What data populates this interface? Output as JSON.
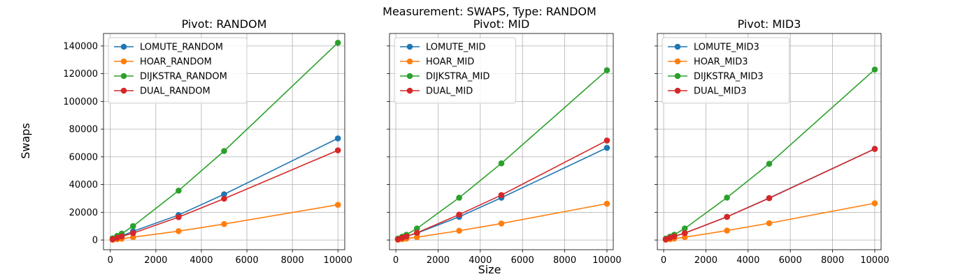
{
  "figure": {
    "suptitle": "Measurement: SWAPS, Type: RANDOM",
    "xlabel": "Size",
    "ylabel": "Swaps"
  },
  "chart_data": [
    {
      "type": "line",
      "title": "Pivot: RANDOM",
      "xlim": [
        -300,
        10300
      ],
      "ylim": [
        -7000,
        149000
      ],
      "xticks": [
        0,
        2000,
        4000,
        6000,
        8000,
        10000
      ],
      "yticks": [
        0,
        20000,
        40000,
        60000,
        80000,
        100000,
        120000,
        140000
      ],
      "grid": true,
      "legend": "top-left",
      "x": [
        100,
        300,
        500,
        1000,
        3000,
        5000,
        10000
      ],
      "series": [
        {
          "name": "LOMUTE_RANDOM",
          "color": "#1f77b4",
          "values": [
            700,
            1900,
            3000,
            6300,
            18000,
            33000,
            73300
          ]
        },
        {
          "name": "HOAR_RANDOM",
          "color": "#ff7f0e",
          "values": [
            200,
            600,
            900,
            2000,
            6400,
            11500,
            25400
          ]
        },
        {
          "name": "DIJKSTRA_RANDOM",
          "color": "#2ca02c",
          "values": [
            1200,
            3000,
            4600,
            10000,
            35600,
            64200,
            142300
          ]
        },
        {
          "name": "DUAL_RANDOM",
          "color": "#d62728",
          "values": [
            500,
            1600,
            2600,
            5000,
            16500,
            29800,
            64700
          ]
        }
      ]
    },
    {
      "type": "line",
      "title": "Pivot: MID",
      "xlim": [
        -300,
        10300
      ],
      "ylim": [
        -7000,
        149000
      ],
      "xticks": [
        0,
        2000,
        4000,
        6000,
        8000,
        10000
      ],
      "yticks": [
        0,
        20000,
        40000,
        60000,
        80000,
        100000,
        120000,
        140000
      ],
      "grid": true,
      "legend": "top-left",
      "x": [
        100,
        300,
        500,
        1000,
        3000,
        5000,
        10000
      ],
      "series": [
        {
          "name": "LOMUTE_MID",
          "color": "#1f77b4",
          "values": [
            500,
            1600,
            2700,
            5000,
            16700,
            30500,
            66500
          ]
        },
        {
          "name": "HOAR_MID",
          "color": "#ff7f0e",
          "values": [
            200,
            600,
            1000,
            2000,
            6700,
            11900,
            26200
          ]
        },
        {
          "name": "DIJKSTRA_MID",
          "color": "#2ca02c",
          "values": [
            1000,
            2400,
            3800,
            8300,
            30500,
            55300,
            122500
          ]
        },
        {
          "name": "DUAL_MID",
          "color": "#d62728",
          "values": [
            500,
            1600,
            2600,
            5200,
            18300,
            32400,
            71800
          ]
        }
      ]
    },
    {
      "type": "line",
      "title": "Pivot: MID3",
      "xlim": [
        -300,
        10300
      ],
      "ylim": [
        -7000,
        149000
      ],
      "xticks": [
        0,
        2000,
        4000,
        6000,
        8000,
        10000
      ],
      "yticks": [
        0,
        20000,
        40000,
        60000,
        80000,
        100000,
        120000,
        140000
      ],
      "grid": true,
      "legend": "top-left",
      "x": [
        100,
        300,
        500,
        1000,
        3000,
        5000,
        10000
      ],
      "series": [
        {
          "name": "LOMUTE_MID3",
          "color": "#1f77b4",
          "values": [
            500,
            1600,
            2600,
            5000,
            16700,
            30300,
            65800
          ]
        },
        {
          "name": "HOAR_MID3",
          "color": "#ff7f0e",
          "values": [
            200,
            600,
            1000,
            2000,
            6800,
            12100,
            26500
          ]
        },
        {
          "name": "DIJKSTRA_MID3",
          "color": "#2ca02c",
          "values": [
            1000,
            2400,
            3800,
            8300,
            30600,
            55000,
            123000
          ]
        },
        {
          "name": "DUAL_MID3",
          "color": "#d62728",
          "values": [
            500,
            1600,
            2600,
            5000,
            16700,
            30200,
            65700
          ]
        }
      ]
    }
  ]
}
